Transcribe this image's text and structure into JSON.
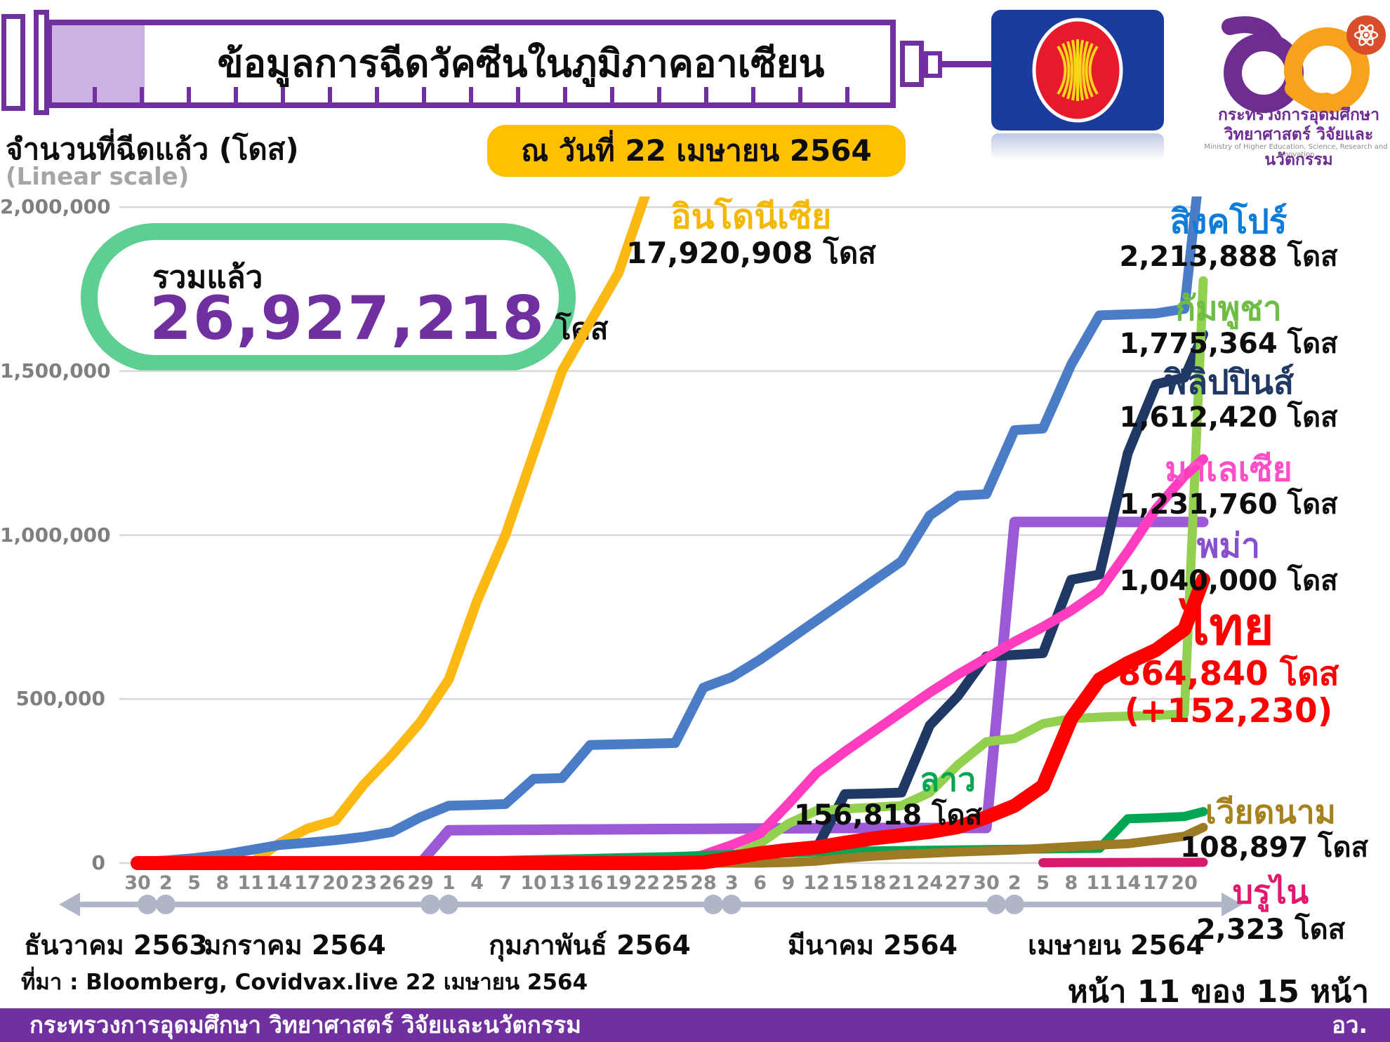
{
  "header": {
    "title": "ข้อมูลการฉีดวัคซีนในภูมิภาคอาเซียน",
    "date_badge": "ณ วันที่ 22 เมษายน 2564"
  },
  "y_axis_title": {
    "line1": "จำนวนที่ฉีดแล้ว (โดส)",
    "line2": "(Linear scale)"
  },
  "total": {
    "label": "รวมแล้ว",
    "number": "26,927,218",
    "unit": "โดส"
  },
  "logos": {
    "asean": "asean-flag-emblem",
    "mhesi_line1": "กระทรวงการอุดมศึกษา",
    "mhesi_line2": "วิทยาศาสตร์ วิจัยและนวัตกรรม",
    "mhesi_line3": "Ministry of Higher Education, Science, Research and Innovation"
  },
  "source": "ที่มา : Bloomberg, Covidvax.live 22 เมษายน 2564",
  "page_indicator": "หน้า 11 ของ 15 หน้า",
  "footer": {
    "text": "กระทรวงการอุดมศึกษา วิทยาศาสตร์ วิจัยและนวัตกรรม",
    "abbr": "อว."
  },
  "chart_data": {
    "type": "line",
    "title": "ข้อมูลการฉีดวัคซีนในภูมิภาคอาเซียน",
    "as_of": "22 เมษายน 2564",
    "ylabel": "จำนวนที่ฉีดแล้ว (โดส)",
    "scale": "linear",
    "grid": true,
    "ylim": [
      0,
      2000000
    ],
    "total_doses": 26927218,
    "y_ticks": [
      {
        "value": 2000000,
        "label": "2,000,000"
      },
      {
        "value": 1500000,
        "label": "1,500,000"
      },
      {
        "value": 1000000,
        "label": "1,000,000"
      },
      {
        "value": 500000,
        "label": "500,000"
      },
      {
        "value": 0,
        "label": "0"
      }
    ],
    "x_note": "ticks every 3 days, 30 Dec 2020 - 20 Apr 2021; last data point 22 Apr 2021",
    "x_tick_labels": [
      "30",
      "2",
      "5",
      "8",
      "11",
      "14",
      "17",
      "20",
      "23",
      "26",
      "29",
      "1",
      "4",
      "7",
      "10",
      "13",
      "16",
      "19",
      "22",
      "25",
      "28",
      "3",
      "6",
      "9",
      "12",
      "15",
      "18",
      "21",
      "24",
      "27",
      "30",
      "2",
      "5",
      "8",
      "11",
      "14",
      "17",
      "20"
    ],
    "months": [
      {
        "label": "ธันวาคม 2563"
      },
      {
        "label": "มกราคม 2564"
      },
      {
        "label": "กุมภาพันธ์ 2564"
      },
      {
        "label": "มีนาคม 2564"
      },
      {
        "label": "เมษายน 2564"
      }
    ],
    "series": [
      {
        "id": "indonesia",
        "label": "อินโดนีเซีย",
        "value": 17920908,
        "value_label": "17,920,908 โดส",
        "color": "#FDB913",
        "label_color": "#F5B800",
        "width": 14,
        "points": [
          0,
          0,
          0,
          0,
          0,
          60000,
          105000,
          130000,
          240000,
          330000,
          430000,
          560000,
          800000,
          1000000,
          1250000,
          1500000,
          1650000,
          1800000,
          2050000,
          2400000,
          3200000,
          4000000,
          4800000,
          5600000,
          6400000,
          7200000,
          8000000,
          8800000,
          9600000,
          10400000,
          11200000,
          12200000,
          13200000,
          14300000,
          15400000,
          16200000,
          17000000,
          17500000,
          17920908
        ]
      },
      {
        "id": "singapore",
        "label": "สิงคโปร์",
        "value": 2213888,
        "value_label": "2,213,888 โดส",
        "color": "#4A7CC7",
        "label_color": "#0E7DD9",
        "width": 14,
        "points": [
          3000,
          8000,
          15000,
          25000,
          40000,
          55000,
          62000,
          70000,
          80000,
          95000,
          140000,
          175000,
          177000,
          180000,
          257000,
          259000,
          360000,
          362000,
          364000,
          366000,
          535000,
          567000,
          620000,
          680000,
          740000,
          800000,
          860000,
          920000,
          1060000,
          1120000,
          1125000,
          1320000,
          1325000,
          1520000,
          1670000,
          1673000,
          1676000,
          1690000,
          2213888
        ]
      },
      {
        "id": "myanmar",
        "label": "พม่า",
        "value": 1040000,
        "value_label": "1,040,000 โดส",
        "color": "#9B59D6",
        "label_color": "#8950CE",
        "width": 15,
        "points": [
          0,
          0,
          0,
          0,
          0,
          0,
          0,
          0,
          0,
          0,
          0,
          100000,
          100500,
          101000,
          101500,
          102000,
          102500,
          103000,
          103500,
          104000,
          104500,
          105000,
          105500,
          106000,
          106500,
          107000,
          107000,
          107000,
          107000,
          107000,
          107000,
          1040000,
          1040000,
          1040000,
          1040000,
          1040000,
          1040000,
          1040000,
          1040000
        ]
      },
      {
        "id": "philippines",
        "label": "ฟิลิปปินส์",
        "value": 1612420,
        "value_label": "1,612,420 โดส",
        "color": "#1F3864",
        "label_color": "#1F3864",
        "width": 14,
        "points": [
          0,
          0,
          0,
          0,
          0,
          0,
          0,
          0,
          0,
          0,
          0,
          0,
          0,
          0,
          0,
          0,
          0,
          0,
          0,
          0,
          4000,
          10000,
          25000,
          40000,
          45000,
          210000,
          212000,
          215000,
          420000,
          510000,
          630000,
          635000,
          640000,
          864000,
          880000,
          1250000,
          1460000,
          1480000,
          1612420
        ]
      },
      {
        "id": "cambodia",
        "label": "กัมพูชา",
        "value": 1775364,
        "value_label": "1,775,364 โดส",
        "color": "#92D050",
        "label_color": "#6FBE44",
        "width": 13,
        "points": [
          0,
          0,
          0,
          0,
          0,
          0,
          0,
          0,
          0,
          0,
          0,
          0,
          0,
          0,
          3000,
          6000,
          9000,
          12000,
          14000,
          16000,
          18000,
          22000,
          60000,
          120000,
          160000,
          165000,
          170000,
          175000,
          215000,
          300000,
          370000,
          380000,
          425000,
          440000,
          445000,
          448000,
          450000,
          455000,
          1775364
        ]
      },
      {
        "id": "malaysia",
        "label": "มาเลเซีย",
        "value": 1231760,
        "value_label": "1,231,760 โดส",
        "color": "#FF3DBE",
        "label_color": "#FF4FC8",
        "width": 14,
        "points": [
          0,
          0,
          0,
          0,
          0,
          0,
          0,
          0,
          0,
          0,
          0,
          0,
          0,
          0,
          0,
          0,
          0,
          0,
          0,
          3000,
          25000,
          55000,
          90000,
          180000,
          275000,
          340000,
          400000,
          460000,
          520000,
          575000,
          625000,
          675000,
          720000,
          770000,
          830000,
          950000,
          1080000,
          1180000,
          1231760
        ]
      },
      {
        "id": "laos",
        "label": "ลาว",
        "value": 156818,
        "value_label": "156,818 โดส",
        "color": "#00A651",
        "label_color": "#00A651",
        "width": 13,
        "points": [
          0,
          0,
          0,
          0,
          0,
          0,
          0,
          0,
          0,
          0,
          2000,
          4000,
          6000,
          8000,
          10000,
          12000,
          14000,
          16000,
          18000,
          20000,
          23000,
          26000,
          28000,
          31000,
          34000,
          36000,
          37000,
          38000,
          39000,
          40000,
          41000,
          42000,
          43000,
          44000,
          45000,
          135000,
          138000,
          142000,
          156818
        ]
      },
      {
        "id": "vietnam",
        "label": "เวียดนาม",
        "value": 108897,
        "value_label": "108,897 โดส",
        "color": "#9C7B24",
        "label_color": "#A5821F",
        "width": 13,
        "points": [
          0,
          0,
          0,
          0,
          0,
          0,
          0,
          0,
          0,
          0,
          0,
          0,
          0,
          0,
          0,
          0,
          0,
          0,
          0,
          0,
          0,
          0,
          0,
          2000,
          6000,
          15000,
          21000,
          26000,
          30000,
          34000,
          37000,
          40000,
          45000,
          50000,
          55000,
          59000,
          70000,
          82000,
          108897
        ]
      },
      {
        "id": "brunei",
        "label": "บรูไน",
        "value": 2323,
        "value_label": "2,323 โดส",
        "color": "#D81A6C",
        "label_color": "#E0196E",
        "width": 13,
        "points": [
          null,
          null,
          null,
          null,
          null,
          null,
          null,
          null,
          null,
          null,
          null,
          null,
          null,
          null,
          null,
          null,
          null,
          null,
          null,
          null,
          null,
          null,
          null,
          null,
          null,
          null,
          null,
          null,
          null,
          null,
          null,
          null,
          1000,
          1400,
          1800,
          2000,
          2100,
          2200,
          2323
        ]
      },
      {
        "id": "thailand",
        "label": "ไทย",
        "value": 864840,
        "value_label": "864,840 โดส",
        "extra_label": "(+152,230)",
        "color": "#FE0000",
        "label_color": "#FE0000",
        "width": 20,
        "points": [
          0,
          0,
          0,
          0,
          0,
          0,
          0,
          0,
          0,
          0,
          0,
          0,
          0,
          0,
          0,
          0,
          0,
          0,
          0,
          0,
          2000,
          15000,
          30000,
          40000,
          48000,
          62000,
          75000,
          85000,
          95000,
          110000,
          140000,
          175000,
          235000,
          440000,
          560000,
          610000,
          650000,
          712610,
          864840
        ]
      }
    ]
  }
}
